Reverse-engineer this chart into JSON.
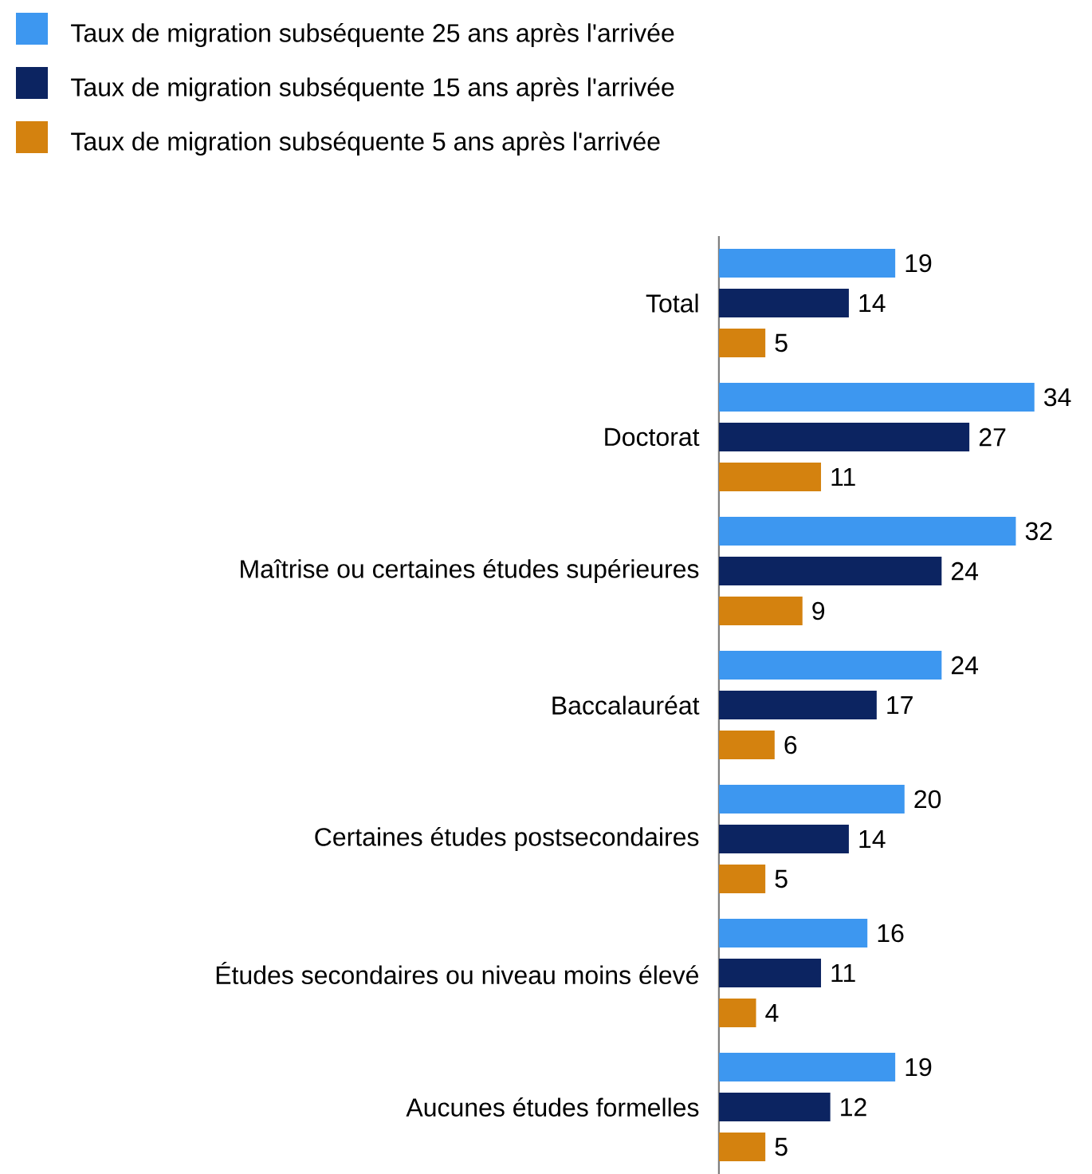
{
  "chart_data": {
    "type": "bar",
    "orientation": "horizontal",
    "data_labels": true,
    "legend": "top left",
    "categories": [
      "Total",
      "Doctorat",
      "Maîtrise ou certaines études supérieures",
      "Baccalauréat",
      "Certaines études postsecondaires",
      "Études secondaires ou niveau moins élevé",
      "Aucunes études formelles"
    ],
    "series": [
      {
        "name": "Taux de migration subséquente 25 ans après l'arrivée",
        "color": "#3d97f0",
        "values": [
          19,
          34,
          32,
          24,
          20,
          16,
          19
        ]
      },
      {
        "name": "Taux de migration subséquente 15 ans après l'arrivée",
        "color": "#0c2461",
        "values": [
          14,
          27,
          24,
          17,
          14,
          11,
          12
        ]
      },
      {
        "name": "Taux de migration subséquente 5 ans après l'arrivée",
        "color": "#d4820f",
        "values": [
          5,
          11,
          9,
          6,
          5,
          4,
          5
        ]
      }
    ]
  }
}
